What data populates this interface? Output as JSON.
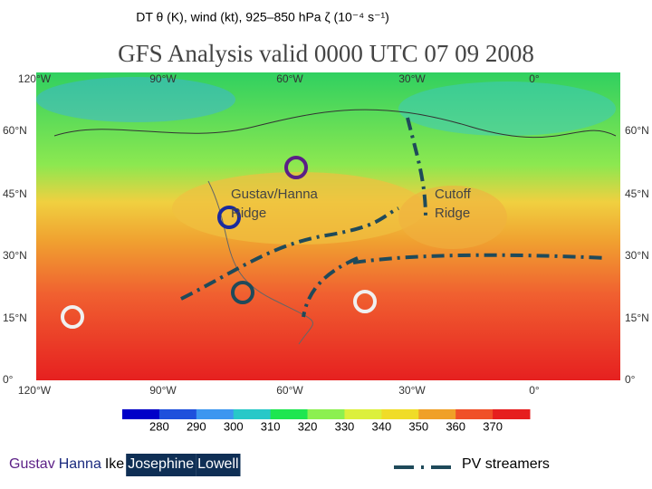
{
  "header": {
    "title": "DT θ (K), wind (kt), 925–850 hPa ζ (10⁻⁴ s⁻¹)"
  },
  "map": {
    "title": "GFS Analysis valid 0000 UTC 07 09 2008",
    "lon_labels": [
      "120°W",
      "90°W",
      "60°W",
      "30°W",
      "0°"
    ],
    "lat_labels": [
      "60°N",
      "45°N",
      "30°N",
      "15°N",
      "0°"
    ],
    "annotations": [
      {
        "lines": [
          "Gustav/Hanna",
          "Ridge"
        ]
      },
      {
        "lines": [
          "Cutoff",
          "Ridge"
        ]
      }
    ]
  },
  "colorbar": {
    "ticks": [
      280,
      290,
      300,
      310,
      320,
      330,
      340,
      350,
      360,
      370
    ],
    "colors": [
      "#0000c8",
      "#1e50dc",
      "#3c96f0",
      "#28c8c8",
      "#1ee650",
      "#8cf050",
      "#dcf03c",
      "#f0dc28",
      "#f0a028",
      "#f05028",
      "#e61e1e"
    ]
  },
  "legend": {
    "storms": [
      {
        "name": "Gustav",
        "color": "#5b1f86"
      },
      {
        "name": "Hanna",
        "color": "#1a2a7e"
      },
      {
        "name": "Ike",
        "color": "#000000"
      },
      {
        "name": "Josephine",
        "color": "#ffffff",
        "background": "#0f2f55"
      },
      {
        "name": "Lowell",
        "color": "#ffffff",
        "background": "#0f2f55"
      }
    ],
    "pv_label": "PV streamers"
  }
}
